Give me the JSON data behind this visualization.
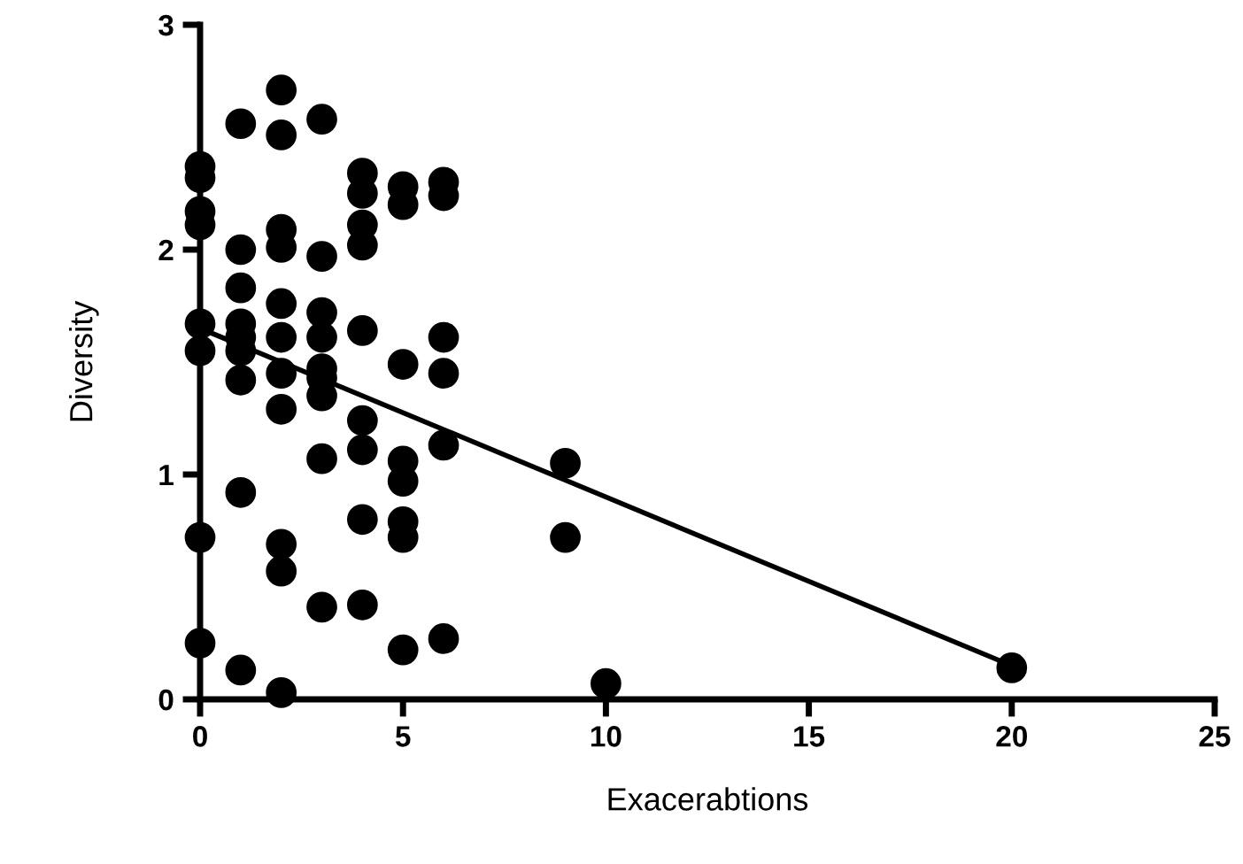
{
  "chart_data": {
    "type": "scatter",
    "xlabel": "Exacerabtions",
    "ylabel": "Diversity",
    "xlim": [
      0,
      25
    ],
    "ylim": [
      0,
      3
    ],
    "xticks": [
      0,
      5,
      10,
      15,
      20,
      25
    ],
    "yticks": [
      0,
      1,
      2,
      3
    ],
    "grid": false,
    "legend": false,
    "series": [
      {
        "marker": "circle",
        "color": "#000000",
        "x": [
          0,
          0,
          0,
          0,
          0,
          0,
          0,
          0,
          1,
          1,
          1,
          1,
          1,
          1,
          1,
          1,
          1,
          2,
          2,
          2,
          2,
          2,
          2,
          2,
          2,
          2,
          2,
          2,
          3,
          3,
          3,
          3,
          3,
          3,
          3,
          3,
          3,
          4,
          4,
          4,
          4,
          4,
          4,
          4,
          4,
          4,
          5,
          5,
          5,
          5,
          5,
          5,
          5,
          5,
          6,
          6,
          6,
          6,
          6,
          6,
          9,
          9,
          10,
          20
        ],
        "values": [
          2.37,
          2.32,
          2.17,
          2.11,
          1.67,
          1.55,
          0.72,
          0.25,
          2.56,
          2.0,
          1.83,
          1.67,
          1.61,
          1.55,
          1.42,
          0.92,
          0.13,
          2.71,
          2.51,
          2.09,
          2.01,
          1.76,
          1.61,
          1.45,
          1.29,
          0.69,
          0.57,
          0.03,
          2.58,
          1.97,
          1.72,
          1.61,
          1.47,
          1.43,
          1.35,
          1.07,
          0.41,
          2.34,
          2.25,
          2.11,
          2.02,
          1.64,
          1.24,
          1.11,
          0.8,
          0.42,
          2.28,
          2.2,
          1.49,
          1.06,
          0.97,
          0.79,
          0.72,
          0.22,
          2.3,
          2.24,
          1.61,
          1.45,
          1.13,
          0.27,
          1.05,
          0.72,
          0.07,
          0.14
        ]
      },
      {
        "type": "line",
        "color": "#000000",
        "x": [
          0,
          20
        ],
        "values": [
          1.65,
          0.15
        ]
      }
    ]
  }
}
